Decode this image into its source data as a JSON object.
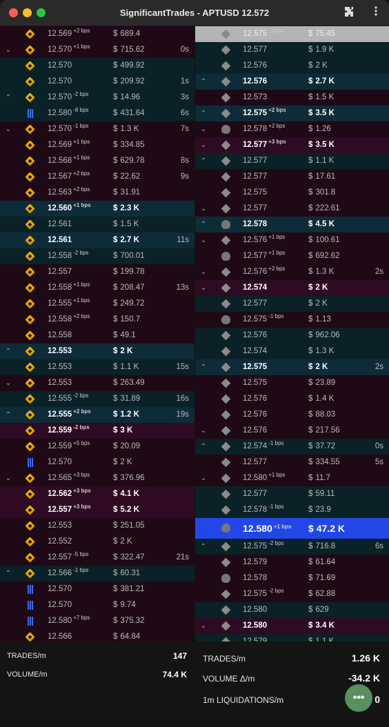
{
  "window": {
    "title": "SignificantTrades - APTUSD 12.572"
  },
  "left_rows": [
    {
      "dir": "",
      "ex": "binance",
      "price": "12.569",
      "bps": "+2 bps",
      "amount": "689.4",
      "time": "",
      "style": "r-sell"
    },
    {
      "dir": "down",
      "ex": "binance",
      "price": "12.570",
      "bps": "+1 bps",
      "amount": "715.62",
      "time": "0s",
      "style": "r-sell"
    },
    {
      "dir": "",
      "ex": "binance",
      "price": "12.570",
      "bps": "",
      "amount": "499.92",
      "time": "",
      "style": "r-buy"
    },
    {
      "dir": "",
      "ex": "binance",
      "price": "12.570",
      "bps": "",
      "amount": "209.92",
      "time": "1s",
      "style": "r-buy"
    },
    {
      "dir": "up",
      "ex": "binance",
      "price": "12.570",
      "bps": "-2 bps",
      "amount": "14.96",
      "time": "3s",
      "style": "r-buy"
    },
    {
      "dir": "",
      "ex": "coinbase",
      "price": "12.580",
      "bps": "-8 bps",
      "amount": "431.64",
      "time": "6s",
      "style": "r-buy"
    },
    {
      "dir": "down",
      "ex": "binance",
      "price": "12.570",
      "bps": "-1 bps",
      "amount": "1.3 K",
      "time": "7s",
      "style": "r-sell"
    },
    {
      "dir": "",
      "ex": "binance",
      "price": "12.569",
      "bps": "+1 bps",
      "amount": "334.85",
      "time": "",
      "style": "r-sell"
    },
    {
      "dir": "",
      "ex": "binance",
      "price": "12.568",
      "bps": "+1 bps",
      "amount": "629.78",
      "time": "8s",
      "style": "r-sell"
    },
    {
      "dir": "",
      "ex": "binance",
      "price": "12.567",
      "bps": "+2 bps",
      "amount": "22.62",
      "time": "9s",
      "style": "r-sell"
    },
    {
      "dir": "",
      "ex": "binance",
      "price": "12.563",
      "bps": "+2 bps",
      "amount": "31.91",
      "time": "",
      "style": "r-sell"
    },
    {
      "dir": "",
      "ex": "binance",
      "price": "12.560",
      "bps": "+1 bps",
      "amount": "2.3 K",
      "time": "",
      "style": "r-buy2"
    },
    {
      "dir": "",
      "ex": "binance",
      "price": "12.561",
      "bps": "",
      "amount": "1.5 K",
      "time": "",
      "style": "r-buy"
    },
    {
      "dir": "",
      "ex": "binance",
      "price": "12.561",
      "bps": "",
      "amount": "2.7 K",
      "time": "11s",
      "style": "r-buy2"
    },
    {
      "dir": "",
      "ex": "binance",
      "price": "12.558",
      "bps": "-2 bps",
      "amount": "700.01",
      "time": "",
      "style": "r-buy"
    },
    {
      "dir": "",
      "ex": "binance",
      "price": "12.557",
      "bps": "",
      "amount": "199.78",
      "time": "",
      "style": "r-sell"
    },
    {
      "dir": "",
      "ex": "binance",
      "price": "12.558",
      "bps": "+1 bps",
      "amount": "208.47",
      "time": "13s",
      "style": "r-sell"
    },
    {
      "dir": "",
      "ex": "binance",
      "price": "12.555",
      "bps": "+1 bps",
      "amount": "249.72",
      "time": "",
      "style": "r-sell"
    },
    {
      "dir": "",
      "ex": "binance",
      "price": "12.558",
      "bps": "+2 bps",
      "amount": "150.7",
      "time": "",
      "style": "r-sell"
    },
    {
      "dir": "",
      "ex": "binance",
      "price": "12.558",
      "bps": "",
      "amount": "49.1",
      "time": "",
      "style": "r-sell"
    },
    {
      "dir": "up",
      "ex": "binance",
      "price": "12.553",
      "bps": "",
      "amount": "2 K",
      "time": "",
      "style": "r-buy2"
    },
    {
      "dir": "",
      "ex": "binance",
      "price": "12.553",
      "bps": "",
      "amount": "1.1 K",
      "time": "15s",
      "style": "r-buy"
    },
    {
      "dir": "down",
      "ex": "binance",
      "price": "12.553",
      "bps": "",
      "amount": "263.49",
      "time": "",
      "style": "r-sell"
    },
    {
      "dir": "",
      "ex": "binance",
      "price": "12.555",
      "bps": "-2 bps",
      "amount": "31.89",
      "time": "16s",
      "style": "r-buy"
    },
    {
      "dir": "up",
      "ex": "binance",
      "price": "12.555",
      "bps": "+2 bps",
      "amount": "1.2 K",
      "time": "19s",
      "style": "r-buy2"
    },
    {
      "dir": "",
      "ex": "binance",
      "price": "12.559",
      "bps": "-2 bps",
      "amount": "3 K",
      "time": "",
      "style": "r-sell2"
    },
    {
      "dir": "",
      "ex": "binance",
      "price": "12.559",
      "bps": "+5 bps",
      "amount": "20.09",
      "time": "",
      "style": "r-sell"
    },
    {
      "dir": "",
      "ex": "coinbase",
      "price": "12.570",
      "bps": "",
      "amount": "2 K",
      "time": "",
      "style": "r-sell"
    },
    {
      "dir": "down",
      "ex": "binance",
      "price": "12.565",
      "bps": "+3 bps",
      "amount": "376.96",
      "time": "",
      "style": "r-sell"
    },
    {
      "dir": "",
      "ex": "binance",
      "price": "12.562",
      "bps": "+3 bps",
      "amount": "4.1 K",
      "time": "",
      "style": "r-sell2"
    },
    {
      "dir": "",
      "ex": "binance",
      "price": "12.557",
      "bps": "+3 bps",
      "amount": "5.2 K",
      "time": "",
      "style": "r-sell2"
    },
    {
      "dir": "",
      "ex": "binance",
      "price": "12.553",
      "bps": "",
      "amount": "251.05",
      "time": "",
      "style": "r-sell"
    },
    {
      "dir": "",
      "ex": "binance",
      "price": "12.552",
      "bps": "",
      "amount": "2 K",
      "time": "",
      "style": "r-sell"
    },
    {
      "dir": "",
      "ex": "binance",
      "price": "12.557",
      "bps": "-5 bps",
      "amount": "322.47",
      "time": "21s",
      "style": "r-sell"
    },
    {
      "dir": "up",
      "ex": "binance",
      "price": "12.566",
      "bps": "-1 bps",
      "amount": "60.31",
      "time": "",
      "style": "r-buy"
    },
    {
      "dir": "",
      "ex": "coinbase",
      "price": "12.570",
      "bps": "",
      "amount": "381.21",
      "time": "",
      "style": "r-sell"
    },
    {
      "dir": "",
      "ex": "coinbase",
      "price": "12.570",
      "bps": "",
      "amount": "9.74",
      "time": "",
      "style": "r-sell"
    },
    {
      "dir": "",
      "ex": "coinbase",
      "price": "12.580",
      "bps": "+7 bps",
      "amount": "375.32",
      "time": "",
      "style": "r-sell"
    },
    {
      "dir": "",
      "ex": "binance",
      "price": "12.566",
      "bps": "",
      "amount": "64.84",
      "time": "",
      "style": "r-sell"
    }
  ],
  "right_rows": [
    {
      "dir": "",
      "ex": "okx",
      "price": "12.575",
      "bps": "-3 bps",
      "amount": "75.45",
      "time": "",
      "style": "r-grey"
    },
    {
      "dir": "",
      "ex": "okx",
      "price": "12.577",
      "bps": "",
      "amount": "1.9 K",
      "time": "",
      "style": "r-buy"
    },
    {
      "dir": "",
      "ex": "okx",
      "price": "12.576",
      "bps": "",
      "amount": "2 K",
      "time": "",
      "style": "r-buy"
    },
    {
      "dir": "up",
      "ex": "okx",
      "price": "12.576",
      "bps": "",
      "amount": "2.7 K",
      "time": "",
      "style": "r-buy2"
    },
    {
      "dir": "",
      "ex": "okx",
      "price": "12.573",
      "bps": "",
      "amount": "1.5 K",
      "time": "",
      "style": "r-sell"
    },
    {
      "dir": "up",
      "ex": "okx",
      "price": "12.575",
      "bps": "+2 bps",
      "amount": "3.5 K",
      "time": "",
      "style": "r-buy2"
    },
    {
      "dir": "down",
      "ex": "bybit",
      "price": "12.578",
      "bps": "+2 bps",
      "amount": "1.26",
      "time": "",
      "style": "r-sell"
    },
    {
      "dir": "down",
      "ex": "okx",
      "price": "12.577",
      "bps": "+3 bps",
      "amount": "3.5 K",
      "time": "",
      "style": "r-sell2"
    },
    {
      "dir": "up",
      "ex": "okx",
      "price": "12.577",
      "bps": "",
      "amount": "1.1 K",
      "time": "",
      "style": "r-buy"
    },
    {
      "dir": "",
      "ex": "okx",
      "price": "12.577",
      "bps": "",
      "amount": "17.61",
      "time": "",
      "style": "r-sell"
    },
    {
      "dir": "",
      "ex": "okx",
      "price": "12.575",
      "bps": "",
      "amount": "301.8",
      "time": "",
      "style": "r-sell"
    },
    {
      "dir": "down",
      "ex": "okx",
      "price": "12.577",
      "bps": "",
      "amount": "222.61",
      "time": "",
      "style": "r-sell"
    },
    {
      "dir": "up",
      "ex": "bybit",
      "price": "12.578",
      "bps": "",
      "amount": "4.5 K",
      "time": "",
      "style": "r-buy2"
    },
    {
      "dir": "down",
      "ex": "okx",
      "price": "12.576",
      "bps": "+1 bps",
      "amount": "100.61",
      "time": "",
      "style": "r-sell"
    },
    {
      "dir": "",
      "ex": "bybit",
      "price": "12.577",
      "bps": "+1 bps",
      "amount": "692.62",
      "time": "",
      "style": "r-sell"
    },
    {
      "dir": "down",
      "ex": "okx",
      "price": "12.576",
      "bps": "+2 bps",
      "amount": "1.3 K",
      "time": "2s",
      "style": "r-sell"
    },
    {
      "dir": "down",
      "ex": "okx",
      "price": "12.574",
      "bps": "",
      "amount": "2 K",
      "time": "",
      "style": "r-sell2"
    },
    {
      "dir": "",
      "ex": "okx",
      "price": "12.577",
      "bps": "",
      "amount": "2 K",
      "time": "",
      "style": "r-buy"
    },
    {
      "dir": "",
      "ex": "bybit",
      "price": "12.575",
      "bps": "-1 bps",
      "amount": "1.13",
      "time": "",
      "style": "r-sell"
    },
    {
      "dir": "",
      "ex": "okx",
      "price": "12.576",
      "bps": "",
      "amount": "962.06",
      "time": "",
      "style": "r-buy"
    },
    {
      "dir": "",
      "ex": "okx",
      "price": "12.574",
      "bps": "",
      "amount": "1.3 K",
      "time": "",
      "style": "r-buy"
    },
    {
      "dir": "up",
      "ex": "okx",
      "price": "12.575",
      "bps": "",
      "amount": "2 K",
      "time": "2s",
      "style": "r-buy2"
    },
    {
      "dir": "",
      "ex": "okx",
      "price": "12.575",
      "bps": "",
      "amount": "23.89",
      "time": "",
      "style": "r-sell"
    },
    {
      "dir": "",
      "ex": "okx",
      "price": "12.576",
      "bps": "",
      "amount": "1.4 K",
      "time": "",
      "style": "r-sell"
    },
    {
      "dir": "",
      "ex": "okx",
      "price": "12.576",
      "bps": "",
      "amount": "88.03",
      "time": "",
      "style": "r-sell"
    },
    {
      "dir": "down",
      "ex": "okx",
      "price": "12.576",
      "bps": "",
      "amount": "217.56",
      "time": "",
      "style": "r-sell"
    },
    {
      "dir": "up",
      "ex": "okx",
      "price": "12.574",
      "bps": "-1 bps",
      "amount": "37.72",
      "time": "0s",
      "style": "r-buy"
    },
    {
      "dir": "",
      "ex": "okx",
      "price": "12.577",
      "bps": "",
      "amount": "334.55",
      "time": "5s",
      "style": "r-sell"
    },
    {
      "dir": "down",
      "ex": "okx",
      "price": "12.580",
      "bps": "+1 bps",
      "amount": "11.7",
      "time": "",
      "style": "r-sell"
    },
    {
      "dir": "",
      "ex": "okx",
      "price": "12.577",
      "bps": "",
      "amount": "59.11",
      "time": "",
      "style": "r-buy"
    },
    {
      "dir": "",
      "ex": "okx",
      "price": "12.578",
      "bps": "-1 bps",
      "amount": "23.9",
      "time": "",
      "style": "r-buy"
    },
    {
      "dir": "",
      "ex": "bybit",
      "price": "12.580",
      "bps": "+1 bps",
      "amount": "47.2 K",
      "time": "",
      "style": "r-whale"
    },
    {
      "dir": "up",
      "ex": "okx",
      "price": "12.575",
      "bps": "-2 bps",
      "amount": "716.8",
      "time": "6s",
      "style": "r-buy"
    },
    {
      "dir": "",
      "ex": "okx",
      "price": "12.579",
      "bps": "",
      "amount": "61.64",
      "time": "",
      "style": "r-sell"
    },
    {
      "dir": "",
      "ex": "bybit",
      "price": "12.578",
      "bps": "",
      "amount": "71.69",
      "time": "",
      "style": "r-sell"
    },
    {
      "dir": "",
      "ex": "okx",
      "price": "12.575",
      "bps": "-2 bps",
      "amount": "62.88",
      "time": "",
      "style": "r-sell"
    },
    {
      "dir": "",
      "ex": "okx",
      "price": "12.580",
      "bps": "",
      "amount": "629",
      "time": "",
      "style": "r-buy"
    },
    {
      "dir": "down",
      "ex": "okx",
      "price": "12.580",
      "bps": "",
      "amount": "3.4 K",
      "time": "",
      "style": "r-sell2"
    },
    {
      "dir": "",
      "ex": "okx",
      "price": "12.579",
      "bps": "",
      "amount": "1.1 K",
      "time": "",
      "style": "r-buy"
    }
  ],
  "currency_symbol": "$",
  "stats_left": {
    "trades_label": "TRADES/m",
    "trades_value": "147",
    "volume_label": "VOLUME/m",
    "volume_value": "74.4 K"
  },
  "stats_right": {
    "trades_label": "TRADES/m",
    "trades_value": "1.26 K",
    "volume_label": "VOLUME Δ/m",
    "volume_value": "-34.2 K",
    "liq_label": "1m LIQUIDATIONS/m",
    "liq_value": "0"
  },
  "icons": {
    "extensions": "puzzle-icon",
    "menu": "kebab-menu-icon",
    "fab": "more-icon"
  }
}
